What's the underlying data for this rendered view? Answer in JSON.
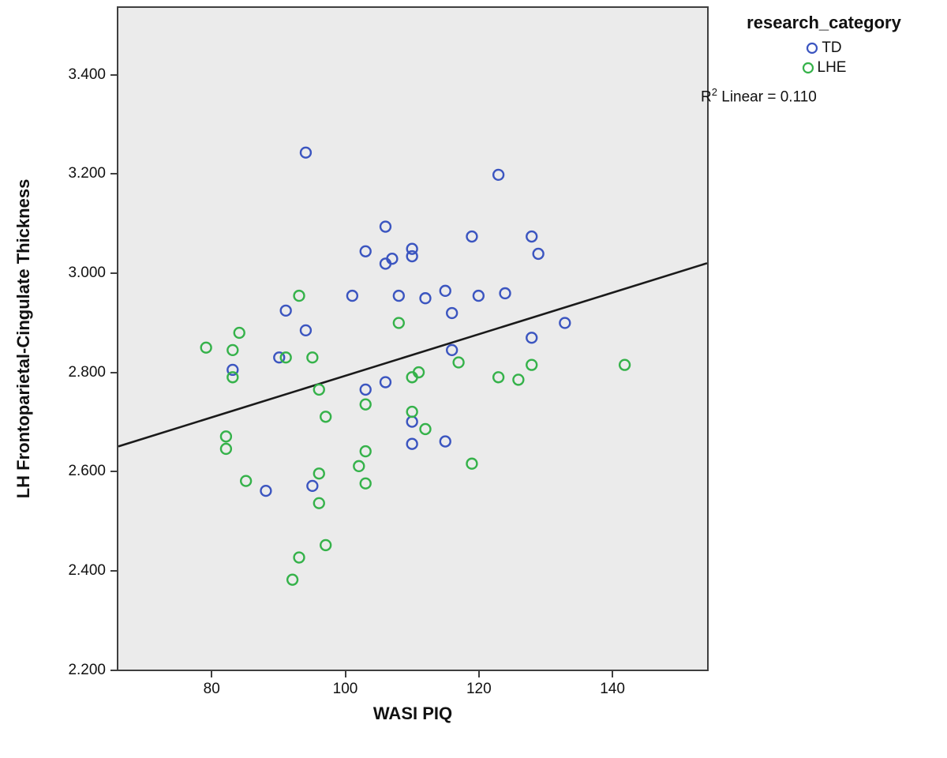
{
  "figure": {
    "background": "#ffffff",
    "plot_background": "#ebebeb",
    "frame_color": "#3f3f3f"
  },
  "legend": {
    "title": "research_category",
    "items": [
      {
        "label": "TD",
        "color": "#3b55c0"
      },
      {
        "label": "LHE",
        "color": "#35b24a"
      }
    ],
    "annotation": {
      "base": "R",
      "sup": "2",
      "rest": " Linear = 0.110"
    }
  },
  "chart_data": {
    "type": "scatter",
    "title": "",
    "xlabel": "WASI PIQ",
    "ylabel": "LH Frontoparietal-Cingulate Thickness",
    "xlim": [
      65.8,
      154.4
    ],
    "ylim": [
      2.198,
      3.538
    ],
    "x_ticks": [
      80,
      100,
      120,
      140
    ],
    "y_ticks": [
      2.2,
      2.4,
      2.6,
      2.8,
      3.0,
      3.2,
      3.4
    ],
    "y_tick_labels": [
      "2.200",
      "2.400",
      "2.600",
      "2.800",
      "3.000",
      "3.200",
      "3.400"
    ],
    "grid": false,
    "legend_position": "top-right-outside",
    "marker": "open-circle",
    "series": [
      {
        "name": "TD",
        "color": "#3b55c0",
        "points": [
          [
            94,
            3.245
          ],
          [
            123,
            3.2
          ],
          [
            106,
            3.095
          ],
          [
            119,
            3.075
          ],
          [
            128,
            3.075
          ],
          [
            103,
            3.045
          ],
          [
            110,
            3.05
          ],
          [
            129,
            3.04
          ],
          [
            110,
            3.035
          ],
          [
            107,
            3.03
          ],
          [
            106,
            3.02
          ],
          [
            115,
            2.965
          ],
          [
            124,
            2.96
          ],
          [
            101,
            2.955
          ],
          [
            108,
            2.955
          ],
          [
            120,
            2.955
          ],
          [
            112,
            2.95
          ],
          [
            91,
            2.925
          ],
          [
            116,
            2.92
          ],
          [
            133,
            2.9
          ],
          [
            94,
            2.885
          ],
          [
            128,
            2.87
          ],
          [
            116,
            2.845
          ],
          [
            90,
            2.83
          ],
          [
            83,
            2.805
          ],
          [
            106,
            2.78
          ],
          [
            103,
            2.765
          ],
          [
            110,
            2.7
          ],
          [
            115,
            2.66
          ],
          [
            110,
            2.655
          ],
          [
            95,
            2.57
          ],
          [
            88,
            2.56
          ]
        ]
      },
      {
        "name": "LHE",
        "color": "#35b24a",
        "points": [
          [
            93,
            2.955
          ],
          [
            108,
            2.9
          ],
          [
            84,
            2.88
          ],
          [
            79,
            2.85
          ],
          [
            83,
            2.845
          ],
          [
            91,
            2.83
          ],
          [
            95,
            2.83
          ],
          [
            117,
            2.82
          ],
          [
            128,
            2.815
          ],
          [
            142,
            2.815
          ],
          [
            111,
            2.8
          ],
          [
            83,
            2.79
          ],
          [
            110,
            2.79
          ],
          [
            123,
            2.79
          ],
          [
            126,
            2.785
          ],
          [
            96,
            2.765
          ],
          [
            103,
            2.735
          ],
          [
            110,
            2.72
          ],
          [
            97,
            2.71
          ],
          [
            112,
            2.685
          ],
          [
            82,
            2.67
          ],
          [
            82,
            2.645
          ],
          [
            103,
            2.64
          ],
          [
            119,
            2.615
          ],
          [
            102,
            2.61
          ],
          [
            96,
            2.595
          ],
          [
            85,
            2.58
          ],
          [
            103,
            2.575
          ],
          [
            96,
            2.535
          ],
          [
            97,
            2.45
          ],
          [
            93,
            2.425
          ],
          [
            92,
            2.38
          ]
        ]
      }
    ],
    "fit_line": {
      "x1": 65.8,
      "y1": 2.65,
      "x2": 154.4,
      "y2": 3.021,
      "color": "#1a1a1a",
      "r_squared": 0.11
    }
  }
}
